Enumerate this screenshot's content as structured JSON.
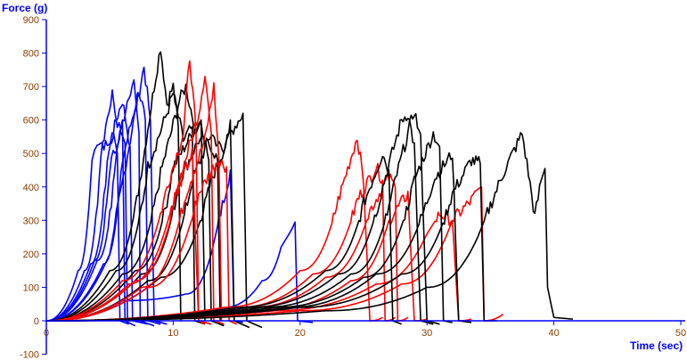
{
  "chart_data": {
    "type": "line",
    "xlabel": "Time (sec)",
    "ylabel": "Force (g)",
    "xlim": [
      0,
      50
    ],
    "ylim": [
      -100,
      900
    ],
    "xticks": [
      "0",
      "10",
      "20",
      "30",
      "40",
      "50"
    ],
    "yticks": [
      "-100",
      "0",
      "100",
      "200",
      "300",
      "400",
      "500",
      "600",
      "700",
      "800",
      "900"
    ],
    "colors": {
      "blue": "#0000ff",
      "red": "#ff0000",
      "black": "#000000",
      "axis": "#0000ff",
      "tick": "#8a3c00"
    },
    "series": [
      {
        "color": "blue",
        "points": [
          [
            0,
            0
          ],
          [
            2.5,
            150
          ],
          [
            3.6,
            480
          ],
          [
            4,
            540
          ],
          [
            4.8,
            520
          ],
          [
            5.3,
            560
          ],
          [
            5.6,
            500
          ],
          [
            5.8,
            0
          ],
          [
            6.5,
            -10
          ]
        ]
      },
      {
        "color": "blue",
        "points": [
          [
            0,
            0
          ],
          [
            3,
            150
          ],
          [
            4.3,
            500
          ],
          [
            5.2,
            690
          ],
          [
            5.6,
            560
          ],
          [
            6,
            600
          ],
          [
            6.2,
            0
          ],
          [
            7,
            -15
          ]
        ]
      },
      {
        "color": "blue",
        "points": [
          [
            0,
            0
          ],
          [
            3.5,
            170
          ],
          [
            4.8,
            480
          ],
          [
            5.5,
            600
          ],
          [
            6,
            660
          ],
          [
            6.6,
            520
          ],
          [
            6.8,
            0
          ],
          [
            8,
            -10
          ]
        ]
      },
      {
        "color": "blue",
        "points": [
          [
            0,
            0
          ],
          [
            4,
            180
          ],
          [
            5.5,
            500
          ],
          [
            6.5,
            680
          ],
          [
            6.9,
            720
          ],
          [
            7.3,
            560
          ],
          [
            7.4,
            0
          ],
          [
            8.5,
            -15
          ]
        ]
      },
      {
        "color": "blue",
        "points": [
          [
            0,
            0
          ],
          [
            4.5,
            170
          ],
          [
            6,
            480
          ],
          [
            7.3,
            690
          ],
          [
            7.8,
            600
          ],
          [
            8,
            0
          ],
          [
            9,
            -10
          ]
        ]
      },
      {
        "color": "blue",
        "points": [
          [
            0,
            0
          ],
          [
            5,
            200
          ],
          [
            6.5,
            520
          ],
          [
            7.7,
            760
          ],
          [
            8.2,
            600
          ],
          [
            8.5,
            0
          ],
          [
            9.5,
            -10
          ]
        ]
      },
      {
        "color": "blue",
        "points": [
          [
            0,
            0
          ],
          [
            3.8,
            180
          ],
          [
            5,
            460
          ],
          [
            5.8,
            560
          ],
          [
            6.2,
            530
          ],
          [
            6.4,
            0
          ]
        ]
      },
      {
        "color": "blue",
        "points": [
          [
            0,
            0
          ],
          [
            6,
            60
          ],
          [
            11,
            80
          ],
          [
            13,
            200
          ],
          [
            14.5,
            450
          ],
          [
            14.8,
            0
          ],
          [
            15.5,
            -5
          ]
        ]
      },
      {
        "color": "blue",
        "points": [
          [
            0,
            0
          ],
          [
            8,
            10
          ],
          [
            14,
            40
          ],
          [
            17,
            120
          ],
          [
            18.5,
            220
          ],
          [
            19.3,
            270
          ],
          [
            19.6,
            295
          ],
          [
            19.8,
            0
          ],
          [
            21,
            -5
          ]
        ]
      },
      {
        "color": "black",
        "points": [
          [
            0,
            0
          ],
          [
            5,
            150
          ],
          [
            7.5,
            450
          ],
          [
            8.5,
            700
          ],
          [
            9,
            820
          ],
          [
            9.5,
            650
          ],
          [
            10,
            700
          ],
          [
            10.4,
            580
          ],
          [
            10.6,
            0
          ]
        ]
      },
      {
        "color": "black",
        "points": [
          [
            0,
            0
          ],
          [
            5.5,
            150
          ],
          [
            8,
            460
          ],
          [
            9.5,
            620
          ],
          [
            10,
            680
          ],
          [
            10.8,
            540
          ],
          [
            11.5,
            580
          ],
          [
            11.7,
            0
          ],
          [
            12.5,
            -10
          ]
        ]
      },
      {
        "color": "black",
        "points": [
          [
            0,
            0
          ],
          [
            6,
            140
          ],
          [
            9,
            440
          ],
          [
            10.5,
            660
          ],
          [
            11,
            700
          ],
          [
            11.8,
            560
          ],
          [
            12.2,
            600
          ],
          [
            12.5,
            0
          ]
        ]
      },
      {
        "color": "black",
        "points": [
          [
            0,
            0
          ],
          [
            7,
            150
          ],
          [
            10,
            460
          ],
          [
            11.5,
            560
          ],
          [
            12.2,
            600
          ],
          [
            12.8,
            480
          ],
          [
            13,
            0
          ],
          [
            14,
            -15
          ]
        ]
      },
      {
        "color": "black",
        "points": [
          [
            0,
            0
          ],
          [
            7.5,
            140
          ],
          [
            10.5,
            420
          ],
          [
            12,
            540
          ],
          [
            13,
            520
          ],
          [
            13.5,
            480
          ],
          [
            13.7,
            0
          ]
        ]
      },
      {
        "color": "black",
        "points": [
          [
            0,
            0
          ],
          [
            8,
            120
          ],
          [
            11.5,
            420
          ],
          [
            13,
            560
          ],
          [
            14,
            500
          ],
          [
            14.5,
            600
          ],
          [
            14.8,
            0
          ],
          [
            16,
            -20
          ]
        ]
      },
      {
        "color": "black",
        "points": [
          [
            0,
            0
          ],
          [
            9,
            130
          ],
          [
            13,
            420
          ],
          [
            14.5,
            560
          ],
          [
            15.5,
            620
          ],
          [
            15.8,
            0
          ],
          [
            17,
            -20
          ]
        ]
      },
      {
        "color": "red",
        "points": [
          [
            0,
            0
          ],
          [
            6,
            120
          ],
          [
            9.5,
            400
          ],
          [
            10.8,
            560
          ],
          [
            11.3,
            790
          ],
          [
            11.8,
            560
          ],
          [
            12,
            0
          ],
          [
            13,
            -10
          ]
        ]
      },
      {
        "color": "red",
        "points": [
          [
            0,
            0
          ],
          [
            7,
            120
          ],
          [
            10.5,
            420
          ],
          [
            12,
            620
          ],
          [
            12.5,
            740
          ],
          [
            13,
            560
          ],
          [
            13.2,
            0
          ],
          [
            14,
            -10
          ]
        ]
      },
      {
        "color": "red",
        "points": [
          [
            0,
            0
          ],
          [
            7.5,
            100
          ],
          [
            11,
            380
          ],
          [
            12.5,
            540
          ],
          [
            13.2,
            700
          ],
          [
            13.6,
            480
          ],
          [
            13.8,
            0
          ]
        ]
      },
      {
        "color": "red",
        "points": [
          [
            0,
            0
          ],
          [
            8,
            100
          ],
          [
            12,
            380
          ],
          [
            13.5,
            480
          ],
          [
            14.2,
            460
          ],
          [
            14.4,
            0
          ],
          [
            15,
            -10
          ]
        ]
      },
      {
        "color": "red",
        "points": [
          [
            0,
            0
          ],
          [
            6.5,
            110
          ],
          [
            10,
            360
          ],
          [
            11.5,
            500
          ],
          [
            12,
            0
          ],
          [
            12.5,
            -10
          ]
        ]
      },
      {
        "color": "red",
        "points": [
          [
            0,
            0
          ],
          [
            14,
            40
          ],
          [
            20,
            150
          ],
          [
            23,
            360
          ],
          [
            24.5,
            550
          ],
          [
            25,
            420
          ],
          [
            25.5,
            0
          ],
          [
            26.5,
            10
          ]
        ]
      },
      {
        "color": "red",
        "points": [
          [
            0,
            0
          ],
          [
            15,
            40
          ],
          [
            21,
            140
          ],
          [
            24.5,
            360
          ],
          [
            26,
            460
          ],
          [
            26.5,
            420
          ],
          [
            26.7,
            0
          ],
          [
            27.5,
            10
          ]
        ]
      },
      {
        "color": "red",
        "points": [
          [
            0,
            0
          ],
          [
            16,
            40
          ],
          [
            22,
            130
          ],
          [
            25.5,
            330
          ],
          [
            27,
            430
          ],
          [
            27.5,
            400
          ],
          [
            27.7,
            0
          ],
          [
            28.5,
            10
          ]
        ]
      },
      {
        "color": "red",
        "points": [
          [
            0,
            0
          ],
          [
            17,
            30
          ],
          [
            24,
            120
          ],
          [
            27,
            300
          ],
          [
            28.5,
            380
          ],
          [
            29,
            0
          ],
          [
            30,
            5
          ]
        ]
      },
      {
        "color": "red",
        "points": [
          [
            0,
            0
          ],
          [
            18,
            30
          ],
          [
            26,
            110
          ],
          [
            30,
            260
          ],
          [
            31,
            320
          ],
          [
            32,
            300
          ],
          [
            32.5,
            0
          ],
          [
            33.5,
            5
          ]
        ]
      },
      {
        "color": "red",
        "points": [
          [
            0,
            0
          ],
          [
            20,
            30
          ],
          [
            28,
            110
          ],
          [
            32,
            300
          ],
          [
            33.5,
            360
          ],
          [
            34.3,
            400
          ],
          [
            34.5,
            0
          ],
          [
            36,
            20
          ]
        ]
      },
      {
        "color": "black",
        "points": [
          [
            0,
            0
          ],
          [
            15,
            40
          ],
          [
            22,
            150
          ],
          [
            25,
            350
          ],
          [
            26.5,
            500
          ],
          [
            27,
            450
          ],
          [
            27.3,
            0
          ],
          [
            28,
            -10
          ]
        ]
      },
      {
        "color": "black",
        "points": [
          [
            0,
            0
          ],
          [
            16,
            40
          ],
          [
            23,
            140
          ],
          [
            26.5,
            400
          ],
          [
            28,
            600
          ],
          [
            28.5,
            620
          ],
          [
            29,
            520
          ],
          [
            29.5,
            0
          ],
          [
            30.5,
            -10
          ]
        ]
      },
      {
        "color": "black",
        "points": [
          [
            0,
            0
          ],
          [
            17,
            40
          ],
          [
            24,
            140
          ],
          [
            27.5,
            420
          ],
          [
            29,
            630
          ],
          [
            29.5,
            540
          ],
          [
            30,
            0
          ],
          [
            31,
            -10
          ]
        ]
      },
      {
        "color": "black",
        "points": [
          [
            0,
            0
          ],
          [
            18,
            40
          ],
          [
            25,
            130
          ],
          [
            29,
            420
          ],
          [
            30.5,
            560
          ],
          [
            31,
            520
          ],
          [
            31.3,
            0
          ],
          [
            32,
            -5
          ]
        ]
      },
      {
        "color": "black",
        "points": [
          [
            0,
            0
          ],
          [
            19,
            40
          ],
          [
            26,
            140
          ],
          [
            30.5,
            420
          ],
          [
            32,
            500
          ],
          [
            32.5,
            0
          ],
          [
            33.5,
            -5
          ]
        ]
      },
      {
        "color": "black",
        "points": [
          [
            0,
            0
          ],
          [
            20,
            40
          ],
          [
            28,
            140
          ],
          [
            32,
            380
          ],
          [
            33.5,
            480
          ],
          [
            34.2,
            470
          ],
          [
            34.5,
            0
          ],
          [
            35.5,
            0
          ]
        ]
      },
      {
        "color": "black",
        "points": [
          [
            0,
            0
          ],
          [
            22,
            30
          ],
          [
            30,
            100
          ],
          [
            34,
            250
          ],
          [
            36,
            440
          ],
          [
            37,
            520
          ],
          [
            37.5,
            560
          ],
          [
            38,
            440
          ],
          [
            38.5,
            310
          ],
          [
            39,
            420
          ],
          [
            39.3,
            455
          ],
          [
            39.5,
            100
          ],
          [
            40,
            10
          ],
          [
            41.5,
            5
          ]
        ]
      }
    ]
  }
}
